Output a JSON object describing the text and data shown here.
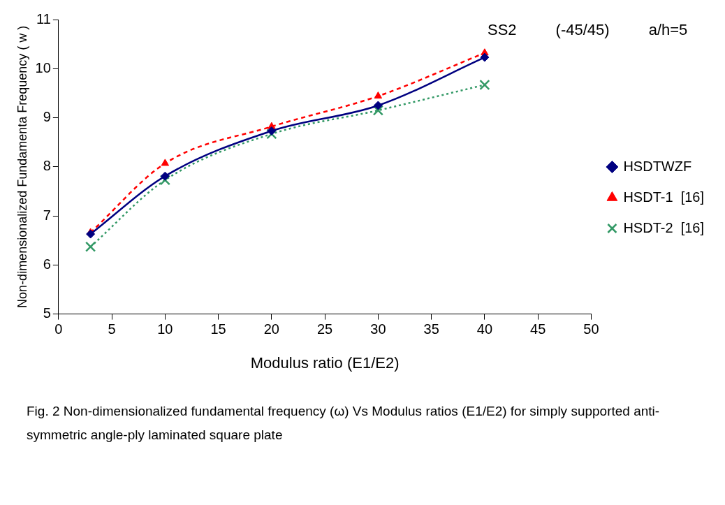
{
  "chart_data": {
    "type": "line",
    "xlabel": "Modulus ratio (E1/E2)",
    "ylabel": "Non-dimensionalized Fundamenta Frequency ( w )",
    "x": [
      3,
      10,
      20,
      30,
      40
    ],
    "series": [
      {
        "name": "HSDTWZF",
        "color": "#000080",
        "values": [
          6.63,
          7.81,
          8.73,
          9.25,
          10.23
        ],
        "marker": "diamond",
        "line_style": "solid"
      },
      {
        "name": "HSDT-1  [16]",
        "color": "#ff0000",
        "values": [
          6.66,
          8.07,
          8.82,
          9.44,
          10.32
        ],
        "marker": "triangle",
        "line_style": "dashed"
      },
      {
        "name": "HSDT-2  [16]",
        "color": "#339966",
        "values": [
          6.37,
          7.73,
          8.67,
          9.15,
          9.67
        ],
        "marker": "cross",
        "line_style": "dotted"
      }
    ],
    "xlim": [
      0,
      50
    ],
    "xticks": [
      0,
      5,
      10,
      15,
      20,
      25,
      30,
      35,
      40,
      45,
      50
    ],
    "ylim": [
      5,
      11
    ],
    "yticks": [
      5,
      6,
      7,
      8,
      9,
      10,
      11
    ],
    "grid": false,
    "legend": "right",
    "annotations": [
      "SS2",
      "(-45/45)",
      "a/h=5",
      "Fig. 2  Non-dimensionalized fundamental frequency (ω) Vs Modulus ratios (E1/E2)  for simply supported anti-symmetric angle-ply laminated square plate"
    ]
  }
}
